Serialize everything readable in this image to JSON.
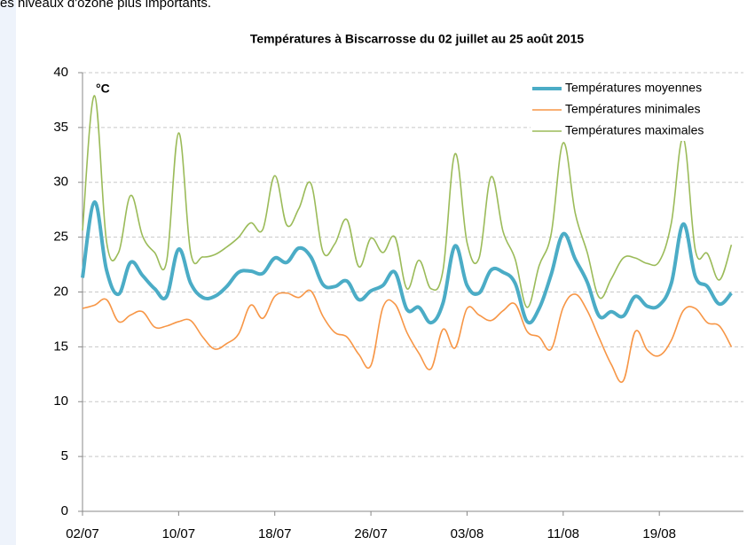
{
  "page_text": "es niveaux d'ozone plus importants.",
  "chart_data": {
    "type": "line",
    "title": "Températures à Biscarrosse du 02 juillet au 25 août 2015",
    "annotation": "°C",
    "categories": [
      "02/07",
      null,
      null,
      null,
      null,
      null,
      null,
      null,
      "10/07",
      null,
      null,
      null,
      null,
      null,
      null,
      null,
      "18/07",
      null,
      null,
      null,
      null,
      null,
      null,
      null,
      "26/07",
      null,
      null,
      null,
      null,
      null,
      null,
      null,
      "03/08",
      null,
      null,
      null,
      null,
      null,
      null,
      null,
      "11/08",
      null,
      null,
      null,
      null,
      null,
      null,
      null,
      "19/08",
      null,
      null,
      null,
      null,
      null,
      null
    ],
    "ylim": [
      0,
      40
    ],
    "yticks": [
      0,
      5,
      10,
      15,
      20,
      25,
      30,
      35,
      40
    ],
    "grid": true,
    "legend": "top-right",
    "series": [
      {
        "name": "Températures moyennes",
        "color": "#4bacc6",
        "values": [
          21.3,
          28.2,
          22,
          19.8,
          22.7,
          21.5,
          20.3,
          19.6,
          23.9,
          20.8,
          19.5,
          19.6,
          20.5,
          21.8,
          21.9,
          21.7,
          23.1,
          22.7,
          24,
          23.2,
          20.7,
          20.5,
          21,
          19.3,
          20.1,
          20.6,
          21.8,
          18.4,
          18.6,
          17.2,
          19,
          24.2,
          20.6,
          19.9,
          22,
          21.8,
          20.8,
          17.3,
          18.5,
          21.6,
          25.3,
          23,
          20.9,
          17.8,
          18.2,
          17.8,
          19.6,
          18.7,
          18.8,
          20.8,
          26.2,
          21.4,
          20.5,
          18.9,
          19.9
        ]
      },
      {
        "name": "Températures minimales",
        "color": "#f79646",
        "values": [
          18.5,
          18.8,
          19.3,
          17.3,
          17.9,
          18.2,
          16.8,
          16.9,
          17.3,
          17.4,
          15.9,
          14.8,
          15.3,
          16.2,
          18.8,
          17.6,
          19.6,
          19.9,
          19.5,
          20.1,
          17.8,
          16.3,
          15.9,
          14.3,
          13.3,
          18.6,
          18.9,
          16.3,
          14.4,
          13.0,
          16.6,
          14.9,
          18.5,
          17.9,
          17.4,
          18.3,
          18.9,
          16.4,
          15.9,
          14.8,
          18.6,
          19.8,
          18.3,
          15.8,
          13.4,
          11.9,
          16.4,
          14.7,
          14.2,
          15.6,
          18.3,
          18.5,
          17.2,
          16.9,
          15.0
        ]
      },
      {
        "name": "Températures maximales",
        "color": "#9bbb59",
        "values": [
          25.6,
          37.9,
          24.6,
          23.6,
          28.8,
          25.1,
          23.6,
          22.8,
          34.5,
          23.6,
          23.2,
          23.4,
          24.1,
          25.0,
          26.3,
          25.7,
          30.6,
          26.1,
          27.6,
          29.9,
          23.7,
          24.4,
          26.6,
          22.3,
          24.9,
          23.6,
          25.0,
          20.3,
          22.9,
          20.3,
          22.0,
          32.6,
          24.5,
          23.1,
          30.5,
          25.5,
          23.0,
          18.6,
          22.4,
          25.3,
          33.6,
          27.2,
          23.6,
          19.5,
          21.2,
          23.1,
          23.1,
          22.6,
          22.8,
          26.3,
          34.0,
          23.8,
          23.5,
          21.1,
          24.3
        ]
      }
    ]
  }
}
